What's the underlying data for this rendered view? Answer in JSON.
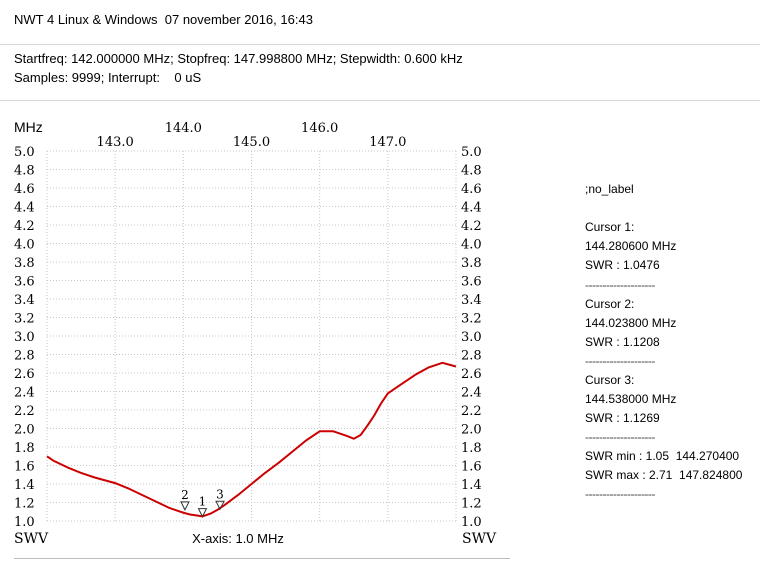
{
  "header": {
    "title": "NWT 4 Linux & Windows  07 november 2016, 16:43",
    "line1": "Startfreq: 142.000000 MHz; Stopfreq: 147.998800 MHz; Stepwidth: 0.600 kHz",
    "line2": "Samples: 9999; Interrupt:    0 uS"
  },
  "chart_data": {
    "type": "line",
    "xunit": "MHz",
    "xlabel": "X-axis: 1.0 MHz",
    "ylabel_left": "SWV",
    "ylabel_right": "SWV",
    "xlim": [
      142.0,
      148.0
    ],
    "ylim": [
      1.0,
      5.0
    ],
    "xticks_top_row": [
      "144.0",
      "146.0"
    ],
    "xticks_bottom_row": [
      "143.0",
      "145.0",
      "147.0"
    ],
    "yticks": [
      "5.0",
      "4.8",
      "4.6",
      "4.4",
      "4.2",
      "4.0",
      "3.8",
      "3.6",
      "3.4",
      "3.2",
      "3.0",
      "2.8",
      "2.6",
      "2.4",
      "2.2",
      "2.0",
      "1.8",
      "1.6",
      "1.4",
      "1.2",
      "1.0"
    ],
    "grid": true,
    "series": [
      {
        "color": "#cc0000",
        "x": [
          142.0,
          142.1,
          142.3,
          142.5,
          142.7,
          143.0,
          143.2,
          143.4,
          143.6,
          143.8,
          144.0,
          144.1,
          144.2,
          144.28,
          144.4,
          144.5,
          144.6,
          144.8,
          145.0,
          145.2,
          145.4,
          145.6,
          145.8,
          146.0,
          146.2,
          146.4,
          146.5,
          146.6,
          146.7,
          146.8,
          146.9,
          147.0,
          147.2,
          147.4,
          147.6,
          147.8,
          147.999
        ],
        "y": [
          1.7,
          1.65,
          1.58,
          1.52,
          1.47,
          1.41,
          1.35,
          1.28,
          1.21,
          1.14,
          1.09,
          1.07,
          1.06,
          1.05,
          1.08,
          1.12,
          1.17,
          1.28,
          1.4,
          1.52,
          1.63,
          1.75,
          1.87,
          1.97,
          1.97,
          1.92,
          1.89,
          1.93,
          2.03,
          2.14,
          2.27,
          2.38,
          2.48,
          2.58,
          2.66,
          2.71,
          2.67
        ]
      }
    ],
    "markers": [
      {
        "label": "2",
        "x": 144.0238,
        "y": 1.1208
      },
      {
        "label": "1",
        "x": 144.2806,
        "y": 1.0476
      },
      {
        "label": "3",
        "x": 144.538,
        "y": 1.1269
      }
    ]
  },
  "side_panel": {
    "label": ";no_label",
    "cursor1": {
      "title": "Cursor 1:",
      "freq": "144.280600 MHz",
      "swr": "SWR : 1.0476"
    },
    "cursor2": {
      "title": "Cursor 2:",
      "freq": "144.023800 MHz",
      "swr": "SWR : 1.1208"
    },
    "cursor3": {
      "title": "Cursor 3:",
      "freq": "144.538000 MHz",
      "swr": "SWR : 1.1269"
    },
    "swr_min": "SWR min : 1.05  144.270400",
    "swr_max": "SWR max : 2.71  147.824800",
    "divider": "--------------------"
  }
}
